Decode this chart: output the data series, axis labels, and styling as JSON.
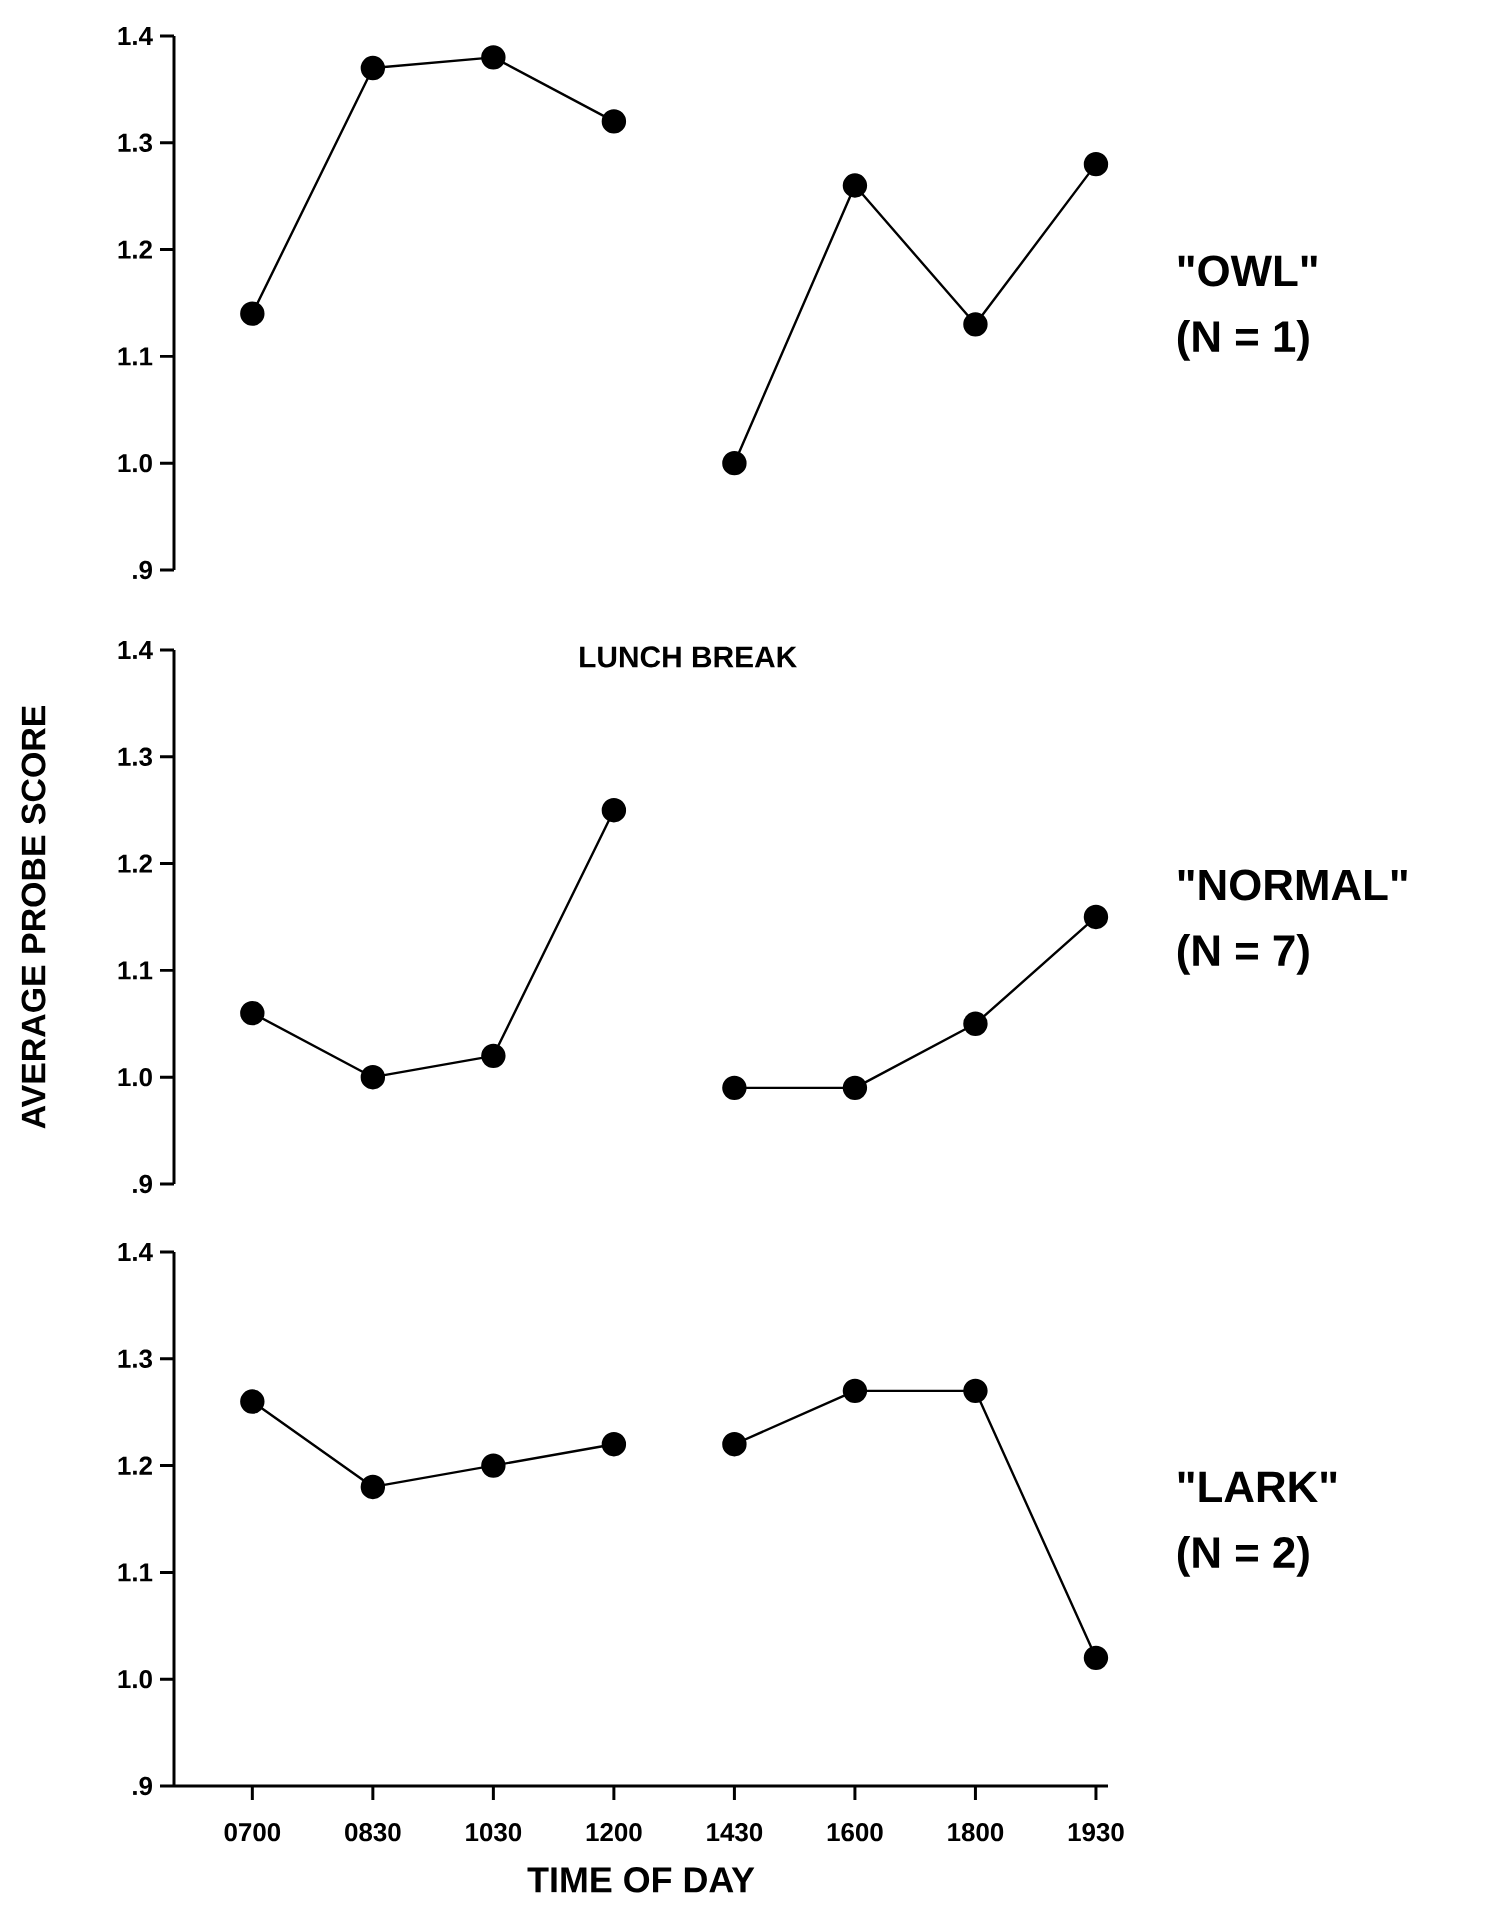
{
  "chart_data": [
    {
      "type": "line",
      "categories": [
        "0700",
        "0830",
        "1030",
        "1200",
        "1430",
        "1600",
        "1800",
        "1930"
      ],
      "ylim": [
        0.9,
        1.4
      ],
      "yticks": [
        {
          "value": 0.9,
          "label": ".9"
        },
        {
          "value": 1.0,
          "label": "1.0"
        },
        {
          "value": 1.1,
          "label": "1.1"
        },
        {
          "value": 1.2,
          "label": "1.2"
        },
        {
          "value": 1.3,
          "label": "1.3"
        },
        {
          "value": 1.4,
          "label": "1.4"
        }
      ],
      "tick_labels": "y",
      "marker": "circle",
      "line_style": "solid",
      "annotations": [
        "\"OWL\"",
        "(N = 1)"
      ],
      "series": [
        {
          "color": "#000000",
          "values": [
            1.14,
            1.37,
            1.38,
            1.32,
            null,
            null,
            null,
            null
          ]
        },
        {
          "color": "#000000",
          "values": [
            null,
            null,
            null,
            null,
            1.0,
            1.26,
            1.13,
            1.28
          ]
        }
      ]
    },
    {
      "type": "line",
      "categories": [
        "0700",
        "0830",
        "1030",
        "1200",
        "1430",
        "1600",
        "1800",
        "1930"
      ],
      "ylabel": "AVERAGE PROBE SCORE",
      "ylim": [
        0.9,
        1.4
      ],
      "yticks": [
        {
          "value": 0.9,
          "label": ".9"
        },
        {
          "value": 1.0,
          "label": "1.0"
        },
        {
          "value": 1.1,
          "label": "1.1"
        },
        {
          "value": 1.2,
          "label": "1.2"
        },
        {
          "value": 1.3,
          "label": "1.3"
        },
        {
          "value": 1.4,
          "label": "1.4"
        }
      ],
      "tick_labels": "y",
      "marker": "circle",
      "line_style": "solid",
      "annotations": [
        "LUNCH BREAK",
        "\"NORMAL\"",
        "(N = 7)"
      ],
      "series": [
        {
          "color": "#000000",
          "values": [
            1.06,
            1.0,
            1.02,
            1.25,
            null,
            null,
            null,
            null
          ]
        },
        {
          "color": "#000000",
          "values": [
            null,
            null,
            null,
            null,
            0.99,
            0.99,
            1.05,
            1.15
          ]
        }
      ]
    },
    {
      "type": "line",
      "categories": [
        "0700",
        "0830",
        "1030",
        "1200",
        "1430",
        "1600",
        "1800",
        "1930"
      ],
      "xlabel": "TIME OF DAY",
      "ylim": [
        0.9,
        1.4
      ],
      "yticks": [
        {
          "value": 0.9,
          "label": ".9"
        },
        {
          "value": 1.0,
          "label": "1.0"
        },
        {
          "value": 1.1,
          "label": "1.1"
        },
        {
          "value": 1.2,
          "label": "1.2"
        },
        {
          "value": 1.3,
          "label": "1.3"
        },
        {
          "value": 1.4,
          "label": "1.4"
        }
      ],
      "marker": "circle",
      "line_style": "solid",
      "annotations": [
        "\"LARK\"",
        "(N = 2)"
      ],
      "series": [
        {
          "color": "#000000",
          "values": [
            1.26,
            1.18,
            1.2,
            1.22,
            null,
            null,
            null,
            null
          ]
        },
        {
          "color": "#000000",
          "values": [
            null,
            null,
            null,
            null,
            1.22,
            1.27,
            1.27,
            1.02
          ]
        }
      ]
    }
  ]
}
